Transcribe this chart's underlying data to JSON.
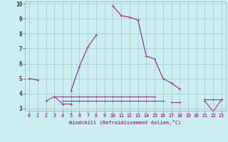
{
  "xlabel": "Windchill (Refroidissement éolien,°C)",
  "x": [
    0,
    1,
    2,
    3,
    4,
    5,
    6,
    7,
    8,
    9,
    10,
    11,
    12,
    13,
    14,
    15,
    16,
    17,
    18,
    19,
    20,
    21,
    22,
    23
  ],
  "main_line": [
    5.0,
    4.9,
    null,
    null,
    null,
    4.2,
    5.8,
    7.1,
    7.9,
    null,
    9.85,
    9.2,
    9.1,
    8.9,
    6.5,
    6.3,
    5.0,
    4.7,
    4.3,
    null,
    null,
    null,
    null,
    null
  ],
  "flat_lines": [
    [
      null,
      null,
      3.5,
      3.8,
      3.3,
      3.3,
      null,
      null,
      null,
      null,
      null,
      null,
      null,
      null,
      null,
      null,
      null,
      null,
      null,
      null,
      null,
      null,
      null,
      null
    ],
    [
      null,
      null,
      null,
      3.8,
      3.8,
      3.8,
      3.8,
      3.8,
      3.8,
      3.8,
      3.8,
      3.8,
      3.8,
      3.8,
      3.8,
      3.8,
      null,
      null,
      null,
      null,
      null,
      null,
      null,
      null
    ],
    [
      null,
      null,
      null,
      null,
      3.5,
      3.5,
      3.5,
      3.5,
      3.5,
      3.5,
      3.5,
      3.5,
      3.5,
      3.5,
      3.5,
      3.5,
      3.5,
      null,
      null,
      null,
      null,
      null,
      null,
      null
    ],
    [
      null,
      null,
      null,
      null,
      null,
      null,
      null,
      null,
      null,
      null,
      null,
      null,
      null,
      null,
      null,
      null,
      null,
      3.4,
      3.4,
      null,
      null,
      3.6,
      3.6,
      3.6
    ],
    [
      null,
      null,
      null,
      null,
      null,
      null,
      null,
      null,
      null,
      null,
      null,
      null,
      null,
      null,
      null,
      null,
      null,
      null,
      null,
      null,
      null,
      3.5,
      2.8,
      3.6
    ]
  ],
  "ylim": [
    3,
    10
  ],
  "xlim": [
    -0.5,
    23.5
  ],
  "line_color": "#993399",
  "bg_color": "#cceef0",
  "grid_color": "#aacccc",
  "yticks": [
    3,
    4,
    5,
    6,
    7,
    8,
    9,
    10
  ],
  "xticks": [
    0,
    1,
    2,
    3,
    4,
    5,
    6,
    7,
    8,
    9,
    10,
    11,
    12,
    13,
    14,
    15,
    16,
    17,
    18,
    19,
    20,
    21,
    22,
    23
  ]
}
